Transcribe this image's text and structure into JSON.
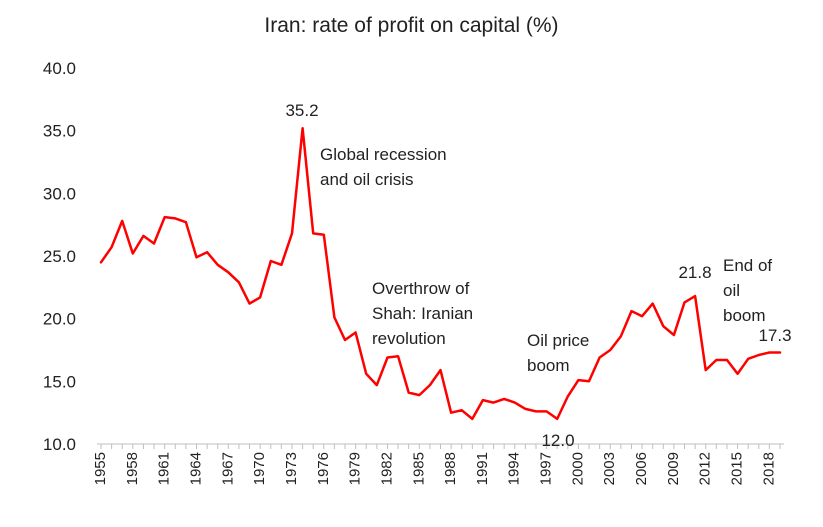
{
  "chart_data": {
    "type": "line",
    "title": "Iran: rate of profit on capital (%)",
    "xlabel": "",
    "ylabel": "",
    "ylim": [
      10,
      40
    ],
    "yticks": [
      "10.0",
      "15.0",
      "20.0",
      "25.0",
      "30.0",
      "35.0",
      "40.0"
    ],
    "xticks": [
      "1955",
      "1958",
      "1961",
      "1964",
      "1967",
      "1970",
      "1973",
      "1976",
      "1979",
      "1982",
      "1985",
      "1988",
      "1991",
      "1994",
      "1997",
      "2000",
      "2003",
      "2006",
      "2009",
      "2012",
      "2015",
      "2018"
    ],
    "x": [
      1955,
      1956,
      1957,
      1958,
      1959,
      1960,
      1961,
      1962,
      1963,
      1964,
      1965,
      1966,
      1967,
      1968,
      1969,
      1970,
      1971,
      1972,
      1973,
      1974,
      1975,
      1976,
      1977,
      1978,
      1979,
      1980,
      1981,
      1982,
      1983,
      1984,
      1985,
      1986,
      1987,
      1988,
      1989,
      1990,
      1991,
      1992,
      1993,
      1994,
      1995,
      1996,
      1997,
      1998,
      1999,
      2000,
      2001,
      2002,
      2003,
      2004,
      2005,
      2006,
      2007,
      2008,
      2009,
      2010,
      2011,
      2012,
      2013,
      2014,
      2015,
      2016,
      2017,
      2018,
      2019
    ],
    "series": [
      {
        "color": "#ff0000",
        "values": [
          24.5,
          25.7,
          27.8,
          25.2,
          26.6,
          26.0,
          28.1,
          28.0,
          27.7,
          24.9,
          25.3,
          24.3,
          23.7,
          22.9,
          21.2,
          21.7,
          24.6,
          24.3,
          26.8,
          35.2,
          26.8,
          26.7,
          20.1,
          18.3,
          18.9,
          15.6,
          14.7,
          16.9,
          17.0,
          14.1,
          13.9,
          14.7,
          15.9,
          12.5,
          12.7,
          12.0,
          13.5,
          13.3,
          13.6,
          13.3,
          12.8,
          12.6,
          12.6,
          12.0,
          13.8,
          15.1,
          15.0,
          16.9,
          17.5,
          18.6,
          20.6,
          20.2,
          21.2,
          19.4,
          18.7,
          21.3,
          21.8,
          15.9,
          16.7,
          16.7,
          15.6,
          16.8,
          17.1,
          17.3,
          17.3
        ]
      }
    ],
    "annotations": [
      {
        "text": "35.2"
      },
      {
        "text": "Global recession"
      },
      {
        "text": "and oil crisis"
      },
      {
        "text": "Overthrow of"
      },
      {
        "text": "Shah: Iranian"
      },
      {
        "text": "revolution"
      },
      {
        "text": "Oil price"
      },
      {
        "text": "boom"
      },
      {
        "text": "12.0"
      },
      {
        "text": "21.8"
      },
      {
        "text": "End of"
      },
      {
        "text": "oil"
      },
      {
        "text": "boom"
      },
      {
        "text": "17.3"
      }
    ],
    "grid": false,
    "legend": "none"
  }
}
